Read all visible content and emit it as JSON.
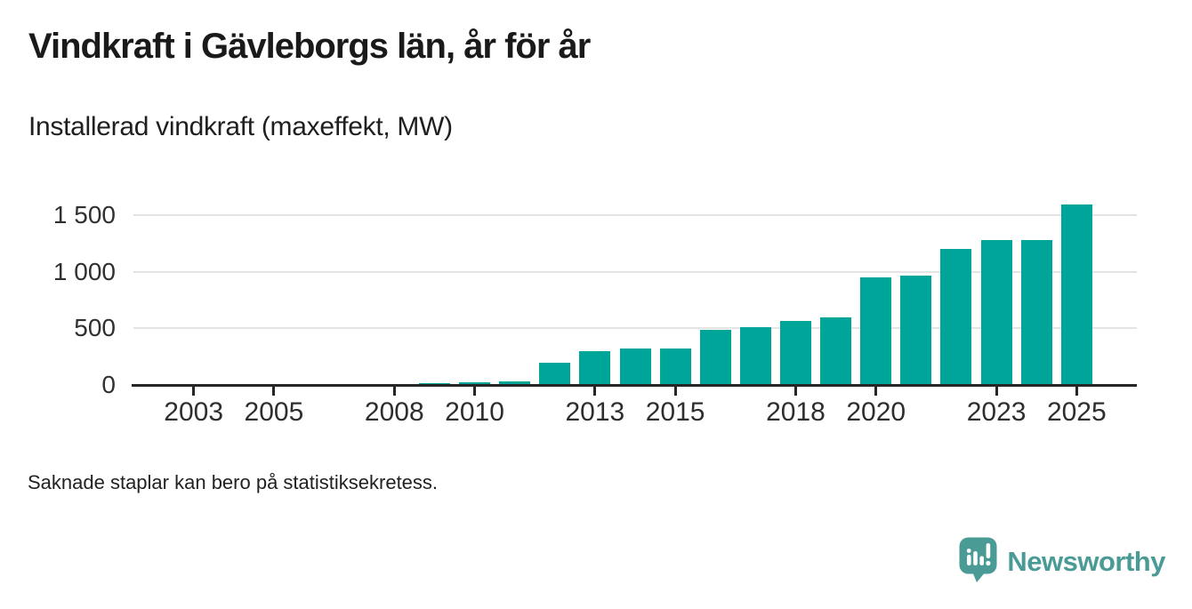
{
  "header": {
    "title": "Vindkraft i Gävleborgs län, år för år",
    "subtitle": "Installerad vindkraft (maxeffekt, MW)"
  },
  "chart_data": {
    "type": "bar",
    "title": "Vindkraft i Gävleborgs län, år för år",
    "subtitle": "Installerad vindkraft (maxeffekt, MW)",
    "unit": "MW",
    "x_domain": [
      2002,
      2026
    ],
    "x_tick_years": [
      2003,
      2005,
      2008,
      2010,
      2013,
      2015,
      2018,
      2020,
      2023,
      2025
    ],
    "y_ticks": [
      {
        "value": 0,
        "label": "0"
      },
      {
        "value": 500,
        "label": "500"
      },
      {
        "value": 1000,
        "label": "1 000"
      },
      {
        "value": 1500,
        "label": "1 500"
      }
    ],
    "ylim": [
      0,
      1675
    ],
    "grid": "horizontal",
    "legend": "none",
    "bar_color": "#00a59a",
    "series": [
      {
        "name": "Installerad vindkraft (maxeffekt, MW)",
        "points": [
          {
            "year": 2009,
            "value": 15
          },
          {
            "year": 2010,
            "value": 22
          },
          {
            "year": 2011,
            "value": 30
          },
          {
            "year": 2012,
            "value": 195
          },
          {
            "year": 2013,
            "value": 300
          },
          {
            "year": 2014,
            "value": 320
          },
          {
            "year": 2015,
            "value": 320
          },
          {
            "year": 2016,
            "value": 490
          },
          {
            "year": 2017,
            "value": 510
          },
          {
            "year": 2018,
            "value": 570
          },
          {
            "year": 2019,
            "value": 595
          },
          {
            "year": 2020,
            "value": 955
          },
          {
            "year": 2021,
            "value": 965
          },
          {
            "year": 2022,
            "value": 1200
          },
          {
            "year": 2023,
            "value": 1280
          },
          {
            "year": 2024,
            "value": 1280
          },
          {
            "year": 2025,
            "value": 1600
          }
        ]
      }
    ]
  },
  "footer": {
    "note": "Saknade staplar kan bero på statistiksekretess.",
    "brand": "Newsworthy"
  },
  "colors": {
    "bar": "#00a59a",
    "brand": "#4a9b96",
    "title_text": "#1a1a1a",
    "axis_line": "#262626",
    "tick_label": "#2e2e2e",
    "gridline": "#e4e4e4"
  }
}
